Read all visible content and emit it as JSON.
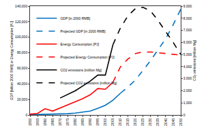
{
  "chart_data": {
    "type": "line",
    "xlabel": "",
    "ylabel": "GDP [billion 2000 RMB] or Energy Consumption [PJ]",
    "y2label": "CO₂ emissions [million Mg]",
    "x": [
      1950,
      1955,
      1960,
      1965,
      1970,
      1975,
      1980,
      1985,
      1990,
      1995,
      2000,
      2005,
      2010,
      2015,
      2020,
      2025,
      2030,
      2035,
      2040,
      2045,
      2050
    ],
    "series": [
      {
        "name": "GDP [in 2000 RMB]",
        "color": "#0070c0",
        "line_style": "solid",
        "values": [
          300,
          500,
          800,
          900,
          1200,
          1600,
          2400,
          3600,
          5000,
          8500,
          12500,
          19000,
          28000,
          null,
          null,
          null,
          null,
          null,
          null,
          null,
          null
        ]
      },
      {
        "name": "Projected GDP [in 2000 RMB]",
        "color": "#0070c0",
        "line_style": "dash",
        "values": [
          null,
          null,
          null,
          null,
          null,
          null,
          null,
          null,
          null,
          null,
          null,
          null,
          28000,
          36000,
          45000,
          57000,
          70000,
          84000,
          98000,
          116000,
          136000
        ]
      },
      {
        "name": "Energy Consumption [PJ]",
        "color": "#ff0000",
        "line_style": "solid",
        "values": [
          1000,
          2000,
          8000,
          5000,
          9000,
          13000,
          17000,
          21000,
          26000,
          34000,
          33000,
          42000,
          null,
          null,
          null,
          null,
          null,
          null,
          null,
          null,
          null
        ]
      },
      {
        "name": "Projected Energy Consumption [PJ]",
        "color": "#ff0000",
        "line_style": "dash",
        "values": [
          null,
          null,
          null,
          null,
          null,
          null,
          null,
          null,
          null,
          null,
          null,
          42000,
          62000,
          72000,
          79000,
          81000,
          81000,
          80000,
          79000,
          78000,
          77000
        ]
      },
      {
        "name": "CO2 emissions [million Mg]",
        "color": "#000000",
        "line_style": "solid",
        "axis": "y2",
        "values": [
          null,
          null,
          null,
          null,
          1400,
          1700,
          2000,
          2400,
          2800,
          3300,
          3300,
          5800,
          null,
          null,
          null,
          null,
          null,
          null,
          null,
          null,
          null
        ]
      },
      {
        "name": "Projected CO2 emissions [million Mg]",
        "color": "#000000",
        "line_style": "dash",
        "axis": "y2",
        "values": [
          null,
          null,
          null,
          null,
          null,
          null,
          null,
          null,
          null,
          null,
          null,
          5800,
          7200,
          8200,
          8800,
          8900,
          8600,
          7800,
          6900,
          6000,
          5000
        ]
      }
    ],
    "xlim": [
      1950,
      2050
    ],
    "xticks": [
      1950,
      1955,
      1960,
      1965,
      1970,
      1975,
      1980,
      1985,
      1990,
      1995,
      2000,
      2005,
      2010,
      2015,
      2020,
      2025,
      2030,
      2035,
      2040,
      2045,
      2050
    ],
    "ylim": [
      0,
      140000
    ],
    "yticks": [
      0,
      {
        "value": 20000,
        "label": "20,000"
      },
      {
        "value": 40000,
        "label": "40,000"
      },
      {
        "value": 60000,
        "label": "60,000"
      },
      {
        "value": 80000,
        "label": "80,000"
      },
      {
        "value": 100000,
        "label": "100,000"
      },
      {
        "value": 120000,
        "label": "120,000"
      },
      {
        "value": 140000,
        "label": "140,000"
      }
    ],
    "y2lim": [
      0,
      9000
    ],
    "y2ticks": [
      0,
      {
        "value": 1000,
        "label": "1,000"
      },
      {
        "value": 2000,
        "label": "2,000"
      },
      {
        "value": 3000,
        "label": "3,000"
      },
      {
        "value": 4000,
        "label": "4,000"
      },
      {
        "value": 5000,
        "label": "5,000"
      },
      {
        "value": 6000,
        "label": "6,000"
      },
      {
        "value": 7000,
        "label": "7,000"
      },
      {
        "value": 8000,
        "label": "8,000"
      },
      {
        "value": 9000,
        "label": "9,000"
      }
    ],
    "grid": false,
    "legend": "top-left"
  }
}
